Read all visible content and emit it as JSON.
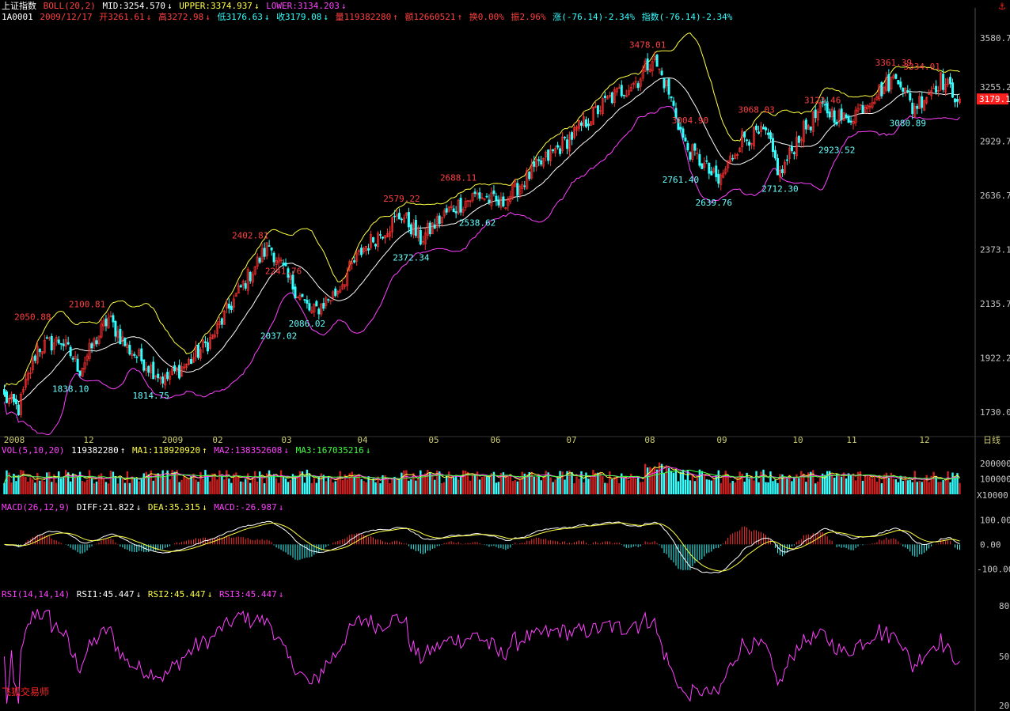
{
  "header1": {
    "index_name": "上证指数",
    "boll_label": "BOLL(20,2)",
    "mid": "MID:3254.570",
    "upper": "UPPER:3374.937",
    "lower": "LOWER:3134.203"
  },
  "header2": {
    "code": "1A0001",
    "date": "2009/12/17",
    "open": "开3261.61",
    "high": "高3272.98",
    "low": "低3176.63",
    "close": "收3179.08",
    "volume": "量119382280",
    "amount": "额12660521",
    "turnover": "换0.00%",
    "amplitude": "振2.96%",
    "change": "涨(-76.14)-2.34%",
    "index_change": "指数(-76.14)-2.34%"
  },
  "vol_header": {
    "label": "VOL(5,10,20)",
    "vol": "119382280",
    "ma1": "MA1:118920920",
    "ma2": "MA2:138352608",
    "ma3": "MA3:167035216"
  },
  "macd_header": {
    "label": "MACD(26,12,9)",
    "diff": "DIFF:21.822",
    "dea": "DEA:35.315",
    "macd": "MACD:-26.987"
  },
  "rsi_header": {
    "label": "RSI(14,14,14)",
    "rsi1": "RSI1:45.447",
    "rsi2": "RSI2:45.447",
    "rsi3": "RSI3:45.447"
  },
  "branding": "飞狐交易师",
  "colors": {
    "up": "#ff3030",
    "down": "#33ffff",
    "upper_band": "#ffff40",
    "mid_band": "#ffffff",
    "lower_band": "#ff40ff",
    "axis_label": "#c8c8c8",
    "date_label": "#c8c870",
    "price_tag": "#ff3030"
  },
  "chart_data": [
    {
      "type": "candlestick",
      "title": "上证指数 BOLL(20,2)",
      "yticks": [
        "3580.7",
        "3255.2",
        "2929.7",
        "2636.7",
        "2373.1",
        "2135.7",
        "1922.2",
        "1730.0"
      ],
      "ylim": [
        1680,
        3680
      ],
      "log_scale": true,
      "last_price_tag": "3179.1",
      "xticks": [
        "2008",
        "12",
        "2009",
        "02",
        "03",
        "04",
        "05",
        "06",
        "07",
        "08",
        "09",
        "10",
        "11",
        "12",
        "日线"
      ],
      "close_anchors": [
        {
          "i": 0,
          "v": 1780
        },
        {
          "i": 6,
          "v": 1740
        },
        {
          "i": 14,
          "v": 1960
        },
        {
          "i": 24,
          "v": 1990
        },
        {
          "i": 32,
          "v": 1880
        },
        {
          "i": 44,
          "v": 2075
        },
        {
          "i": 52,
          "v": 1960
        },
        {
          "i": 68,
          "v": 1840
        },
        {
          "i": 78,
          "v": 1905
        },
        {
          "i": 88,
          "v": 2000
        },
        {
          "i": 100,
          "v": 2200
        },
        {
          "i": 112,
          "v": 2395
        },
        {
          "i": 120,
          "v": 2240
        },
        {
          "i": 130,
          "v": 2095
        },
        {
          "i": 140,
          "v": 2180
        },
        {
          "i": 152,
          "v": 2380
        },
        {
          "i": 168,
          "v": 2540
        },
        {
          "i": 176,
          "v": 2420
        },
        {
          "i": 188,
          "v": 2560
        },
        {
          "i": 200,
          "v": 2640
        },
        {
          "i": 210,
          "v": 2590
        },
        {
          "i": 225,
          "v": 2780
        },
        {
          "i": 240,
          "v": 2960
        },
        {
          "i": 255,
          "v": 3170
        },
        {
          "i": 268,
          "v": 3300
        },
        {
          "i": 274,
          "v": 3450
        },
        {
          "i": 280,
          "v": 3260
        },
        {
          "i": 288,
          "v": 2900
        },
        {
          "i": 294,
          "v": 2820
        },
        {
          "i": 302,
          "v": 2700
        },
        {
          "i": 312,
          "v": 2950
        },
        {
          "i": 322,
          "v": 2970
        },
        {
          "i": 328,
          "v": 2740
        },
        {
          "i": 336,
          "v": 2960
        },
        {
          "i": 346,
          "v": 3120
        },
        {
          "i": 356,
          "v": 3050
        },
        {
          "i": 366,
          "v": 3180
        },
        {
          "i": 378,
          "v": 3330
        },
        {
          "i": 384,
          "v": 3120
        },
        {
          "i": 396,
          "v": 3300
        },
        {
          "i": 404,
          "v": 3179
        }
      ],
      "annotations": [
        {
          "label": "2050.88",
          "i": 12,
          "v": 2050.88,
          "color": "red",
          "pos": "above"
        },
        {
          "label": "2100.81",
          "i": 35,
          "v": 2100.81,
          "color": "red",
          "pos": "above"
        },
        {
          "label": "1838.10",
          "i": 28,
          "v": 1838.1,
          "color": "cyan",
          "pos": "below"
        },
        {
          "label": "1814.75",
          "i": 62,
          "v": 1814.75,
          "color": "cyan",
          "pos": "below"
        },
        {
          "label": "2402.81",
          "i": 104,
          "v": 2402.81,
          "color": "red",
          "pos": "above"
        },
        {
          "label": "2241.76",
          "i": 118,
          "v": 2241.76,
          "color": "red",
          "pos": "above"
        },
        {
          "label": "2037.02",
          "i": 116,
          "v": 2037.02,
          "color": "cyan",
          "pos": "below"
        },
        {
          "label": "2086.02",
          "i": 128,
          "v": 2086.02,
          "color": "cyan",
          "pos": "below"
        },
        {
          "label": "2579.22",
          "i": 168,
          "v": 2579.22,
          "color": "red",
          "pos": "above"
        },
        {
          "label": "2372.34",
          "i": 172,
          "v": 2372.34,
          "color": "cyan",
          "pos": "below"
        },
        {
          "label": "2688.11",
          "i": 192,
          "v": 2688.11,
          "color": "red",
          "pos": "above"
        },
        {
          "label": "2538.62",
          "i": 200,
          "v": 2538.62,
          "color": "cyan",
          "pos": "below"
        },
        {
          "label": "3478.01",
          "i": 272,
          "v": 3478.01,
          "color": "red",
          "pos": "above"
        },
        {
          "label": "3004.90",
          "i": 290,
          "v": 3004.9,
          "color": "red",
          "pos": "above"
        },
        {
          "label": "2761.40",
          "i": 286,
          "v": 2761.4,
          "color": "cyan",
          "pos": "below"
        },
        {
          "label": "2639.76",
          "i": 300,
          "v": 2639.76,
          "color": "cyan",
          "pos": "below"
        },
        {
          "label": "3068.03",
          "i": 318,
          "v": 3068.03,
          "color": "red",
          "pos": "above"
        },
        {
          "label": "2712.30",
          "i": 328,
          "v": 2712.3,
          "color": "cyan",
          "pos": "below"
        },
        {
          "label": "3123.46",
          "i": 346,
          "v": 3123.46,
          "color": "red",
          "pos": "above"
        },
        {
          "label": "2923.52",
          "i": 352,
          "v": 2923.52,
          "color": "cyan",
          "pos": "below"
        },
        {
          "label": "3361.39",
          "i": 376,
          "v": 3361.39,
          "color": "red",
          "pos": "above"
        },
        {
          "label": "3334.01",
          "i": 388,
          "v": 3334.01,
          "color": "red",
          "pos": "above"
        },
        {
          "label": "3080.89",
          "i": 382,
          "v": 3080.89,
          "color": "cyan",
          "pos": "below"
        }
      ]
    },
    {
      "type": "bar",
      "title": "VOL(5,10,20)",
      "yticks": [
        "200000",
        "100000"
      ],
      "unit_label": "X10000",
      "ylim": [
        0,
        250000
      ]
    },
    {
      "type": "bar",
      "title": "MACD(26,12,9)",
      "yticks": [
        "100.00",
        "0.00",
        "-100.00"
      ],
      "ylim": [
        -150,
        130
      ]
    },
    {
      "type": "line",
      "title": "RSI(14,14,14)",
      "yticks": [
        "80",
        "50",
        "20"
      ],
      "ylim": [
        20,
        80
      ]
    }
  ]
}
